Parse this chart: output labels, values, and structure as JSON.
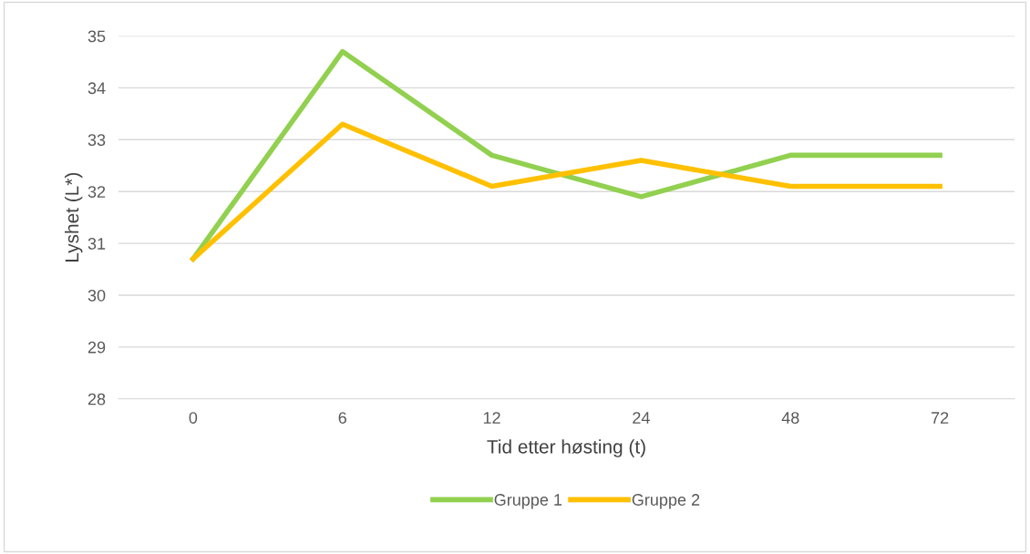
{
  "chart_data": {
    "type": "line",
    "xlabel": "Tid etter høsting (t)",
    "ylabel": "Lyshet (L*)",
    "categories": [
      "0",
      "6",
      "12",
      "24",
      "48",
      "72"
    ],
    "series": [
      {
        "name": "Gruppe 1",
        "color": "#92d050",
        "values": [
          30.7,
          34.7,
          32.7,
          31.9,
          32.7,
          32.7
        ]
      },
      {
        "name": "Gruppe 2",
        "color": "#ffc000",
        "values": [
          30.7,
          33.3,
          32.1,
          32.6,
          32.1,
          32.1
        ]
      }
    ],
    "ylim": [
      28,
      35
    ],
    "yticks": [
      28,
      29,
      30,
      31,
      32,
      33,
      34,
      35
    ],
    "grid": "y",
    "legend": "bottom",
    "marker": "none",
    "line_style": "solid"
  }
}
